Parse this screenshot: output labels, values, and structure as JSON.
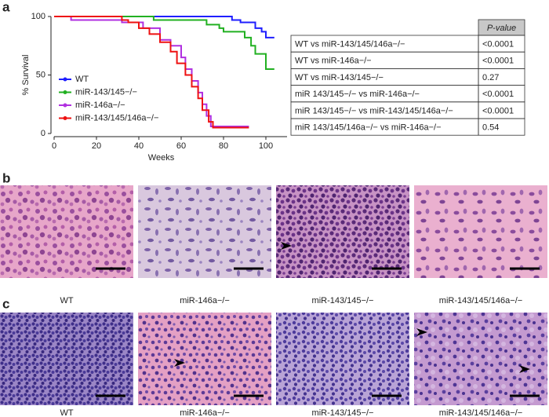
{
  "labels": [
    "a",
    "b",
    "c"
  ],
  "chart_data": {
    "type": "line",
    "step": true,
    "xlabel": "Weeks",
    "ylabel": "% Survival",
    "xlim": [
      0,
      110
    ],
    "xticks": [
      0,
      20,
      40,
      60,
      80,
      100
    ],
    "ylim": [
      0,
      100
    ],
    "yticks": [
      0,
      50,
      100
    ],
    "legend": "lower left",
    "series": [
      {
        "name": "WT",
        "color": "#1f1fff",
        "x": [
          0,
          84,
          84,
          88,
          88,
          95,
          95,
          98,
          98,
          100,
          100,
          104
        ],
        "values": [
          100,
          100,
          97,
          97,
          95,
          95,
          90,
          90,
          87,
          87,
          82,
          82
        ]
      },
      {
        "name": "miR-143/145−/−",
        "color": "#22b022",
        "x": [
          0,
          47,
          47,
          72,
          72,
          78,
          78,
          80,
          80,
          90,
          90,
          93,
          93,
          95,
          95,
          100,
          100,
          104
        ],
        "values": [
          100,
          100,
          97,
          97,
          93,
          93,
          90,
          90,
          87,
          87,
          82,
          82,
          75,
          75,
          68,
          68,
          55,
          55
        ]
      },
      {
        "name": "miR-146a−/−",
        "color": "#b030e0",
        "x": [
          0,
          8,
          8,
          32,
          32,
          42,
          42,
          50,
          50,
          55,
          55,
          60,
          60,
          62,
          62,
          65,
          65,
          68,
          68,
          70,
          70,
          72,
          72,
          74,
          74,
          92
        ],
        "values": [
          100,
          100,
          97,
          97,
          95,
          95,
          90,
          90,
          80,
          80,
          75,
          75,
          65,
          65,
          55,
          55,
          45,
          45,
          35,
          35,
          25,
          25,
          15,
          15,
          6,
          6
        ]
      },
      {
        "name": "miR-143/145/146a−/−",
        "color": "#ee1111",
        "x": [
          0,
          32,
          32,
          35,
          35,
          40,
          40,
          45,
          45,
          50,
          50,
          55,
          55,
          58,
          58,
          62,
          62,
          65,
          65,
          68,
          68,
          70,
          70,
          73,
          73,
          75,
          75,
          92
        ],
        "values": [
          100,
          100,
          97,
          97,
          95,
          95,
          90,
          90,
          85,
          85,
          78,
          78,
          70,
          70,
          60,
          60,
          50,
          50,
          40,
          40,
          30,
          30,
          20,
          20,
          10,
          10,
          5,
          5
        ]
      }
    ]
  },
  "table": {
    "header": "P-value",
    "rows": [
      [
        "WT vs miR-143/145/146a−/−",
        "<0.0001"
      ],
      [
        "WT vs miR-146a−/−",
        "<0.0001"
      ],
      [
        "WT vs miR-143/145−/−",
        "0.27"
      ],
      [
        "miR 143/145−/− vs miR-146a−/−",
        "<0.0001"
      ],
      [
        "miR 143/145−/− vs miR-143/145/146a−/−",
        "<0.0001"
      ],
      [
        "miR 143/145/146a−/− vs miR-146a−/−",
        "0.54"
      ]
    ]
  },
  "panels": [
    {
      "captions": [
        "WT",
        "miR-146a−/−",
        "miR-143/145−/−",
        "miR-143/145/146a−/−"
      ]
    },
    {
      "captions": [
        "WT",
        "miR-146a−/−",
        "miR-143/145−/−",
        "miR-143/145/146a−/−"
      ]
    }
  ]
}
